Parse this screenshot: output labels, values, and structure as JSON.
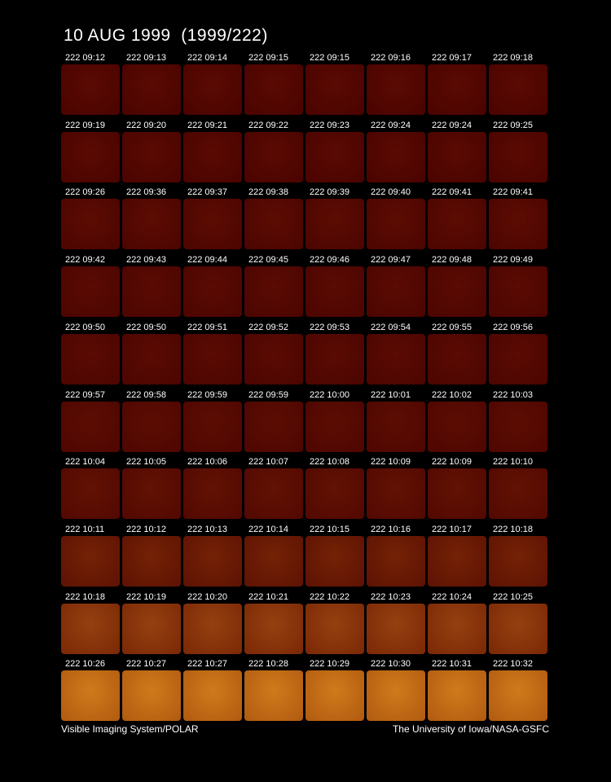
{
  "title": "10 AUG 1999  (1999/222)",
  "frames": [
    [
      "222 09:12",
      "222 09:13",
      "222 09:14",
      "222 09:15",
      "222 09:15",
      "222 09:16",
      "222 09:17",
      "222 09:18"
    ],
    [
      "222 09:19",
      "222 09:20",
      "222 09:21",
      "222 09:22",
      "222 09:23",
      "222 09:24",
      "222 09:24",
      "222 09:25"
    ],
    [
      "222 09:26",
      "222 09:36",
      "222 09:37",
      "222 09:38",
      "222 09:39",
      "222 09:40",
      "222 09:41",
      "222 09:41"
    ],
    [
      "222 09:42",
      "222 09:43",
      "222 09:44",
      "222 09:45",
      "222 09:46",
      "222 09:47",
      "222 09:48",
      "222 09:49"
    ],
    [
      "222 09:50",
      "222 09:50",
      "222 09:51",
      "222 09:52",
      "222 09:53",
      "222 09:54",
      "222 09:55",
      "222 09:56"
    ],
    [
      "222 09:57",
      "222 09:58",
      "222 09:59",
      "222 09:59",
      "222 10:00",
      "222 10:01",
      "222 10:02",
      "222 10:03"
    ],
    [
      "222 10:04",
      "222 10:05",
      "222 10:06",
      "222 10:07",
      "222 10:08",
      "222 10:09",
      "222 10:09",
      "222 10:10"
    ],
    [
      "222 10:11",
      "222 10:12",
      "222 10:13",
      "222 10:14",
      "222 10:15",
      "222 10:16",
      "222 10:17",
      "222 10:18"
    ],
    [
      "222 10:18",
      "222 10:19",
      "222 10:20",
      "222 10:21",
      "222 10:22",
      "222 10:23",
      "222 10:24",
      "222 10:25"
    ],
    [
      "222 10:26",
      "222 10:27",
      "222 10:27",
      "222 10:28",
      "222 10:29",
      "222 10:30",
      "222 10:31",
      "222 10:32"
    ]
  ],
  "footer": {
    "left": "Visible Imaging System/POLAR",
    "right": "The University of Iowa/NASA-GSFC"
  }
}
